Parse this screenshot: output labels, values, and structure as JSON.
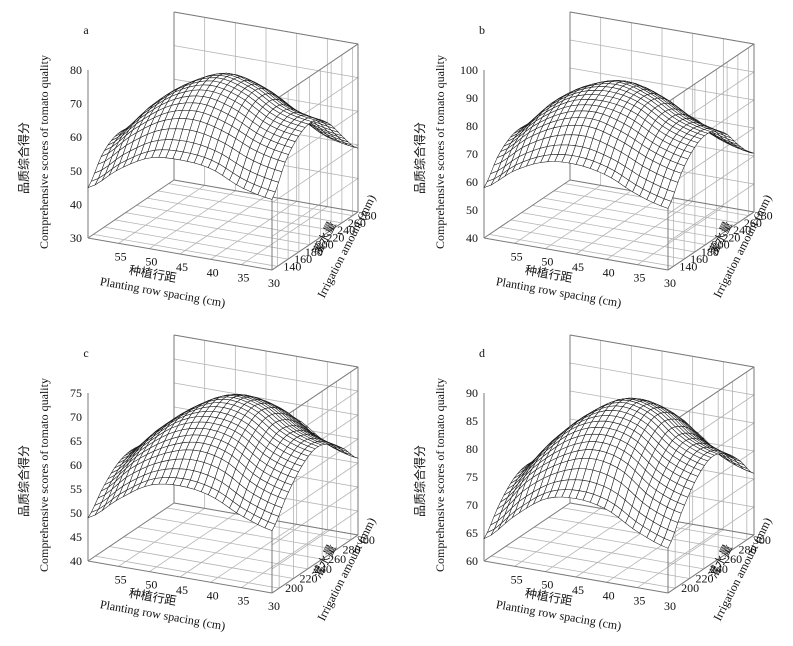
{
  "chart_data": [
    {
      "type": "surface",
      "panel_label": "a",
      "zlabel_cn": "品质综合得分",
      "zlabel": "Comprehensive scores of tomato quality",
      "xlabel_cn": "种植行距",
      "xlabel": "Planting row spacing (cm)",
      "ylabel_cn": "灌水量",
      "ylabel": "Irrigation amount (mm)",
      "x_ticks": [
        "55",
        "50",
        "45",
        "40",
        "35",
        "30"
      ],
      "y_ticks": [
        "140",
        "160",
        "180",
        "200",
        "220",
        "240",
        "260",
        "280"
      ],
      "z_ticks": [
        "30",
        "40",
        "50",
        "60",
        "70",
        "80"
      ],
      "xlim": [
        30,
        60
      ],
      "ylim": [
        130,
        290
      ],
      "zlim": [
        30,
        80
      ],
      "surface": {
        "x": [
          60,
          55,
          50,
          45,
          40,
          35,
          30
        ],
        "y": [
          130,
          160,
          190,
          220,
          250,
          280,
          290
        ],
        "z": [
          [
            45,
            52,
            57,
            58,
            57,
            53,
            51
          ],
          [
            52,
            60,
            66,
            68,
            66,
            62,
            60
          ],
          [
            55,
            64,
            71,
            74,
            72,
            67,
            65
          ],
          [
            54,
            64,
            71,
            75,
            73,
            68,
            66
          ],
          [
            50,
            60,
            67,
            71,
            69,
            64,
            62
          ],
          [
            43,
            53,
            60,
            63,
            62,
            57,
            55
          ],
          [
            38,
            47,
            54,
            57,
            56,
            51,
            49
          ]
        ]
      }
    },
    {
      "type": "surface",
      "panel_label": "b",
      "zlabel_cn": "品质综合得分",
      "zlabel": "Comprehensive scores of tomato quality",
      "xlabel_cn": "种植行距",
      "xlabel": "Planting row spacing (cm)",
      "ylabel_cn": "灌水量",
      "ylabel": "Irrigation amount (mm)",
      "x_ticks": [
        "55",
        "50",
        "45",
        "40",
        "35",
        "30"
      ],
      "y_ticks": [
        "140",
        "160",
        "180",
        "200",
        "220",
        "240",
        "260",
        "280"
      ],
      "z_ticks": [
        "40",
        "50",
        "60",
        "70",
        "80",
        "90",
        "100"
      ],
      "xlim": [
        30,
        60
      ],
      "ylim": [
        130,
        290
      ],
      "zlim": [
        40,
        100
      ],
      "surface": {
        "x": [
          60,
          55,
          50,
          45,
          40,
          35,
          30
        ],
        "y": [
          130,
          160,
          190,
          220,
          250,
          280,
          290
        ],
        "z": [
          [
            58,
            66,
            71,
            72,
            70,
            65,
            62
          ],
          [
            66,
            75,
            81,
            83,
            80,
            75,
            72
          ],
          [
            70,
            80,
            87,
            89,
            87,
            81,
            78
          ],
          [
            70,
            81,
            88,
            91,
            88,
            82,
            79
          ],
          [
            66,
            77,
            84,
            87,
            84,
            78,
            75
          ],
          [
            59,
            69,
            76,
            79,
            76,
            70,
            67
          ],
          [
            54,
            63,
            70,
            72,
            70,
            64,
            61
          ]
        ]
      }
    },
    {
      "type": "surface",
      "panel_label": "c",
      "zlabel_cn": "品质综合得分",
      "zlabel": "Comprehensive scores of tomato quality",
      "xlabel_cn": "种植行距",
      "xlabel": "Planting row spacing (cm)",
      "ylabel_cn": "灌水量",
      "ylabel": "Irrigation amount (mm)",
      "x_ticks": [
        "55",
        "50",
        "45",
        "40",
        "35",
        "30"
      ],
      "y_ticks": [
        "200",
        "220",
        "240",
        "260",
        "280",
        "300"
      ],
      "z_ticks": [
        "40",
        "45",
        "50",
        "55",
        "60",
        "65",
        "70",
        "75"
      ],
      "xlim": [
        30,
        60
      ],
      "ylim": [
        190,
        310
      ],
      "zlim": [
        40,
        75
      ],
      "surface": {
        "x": [
          60,
          55,
          50,
          45,
          40,
          35,
          30
        ],
        "y": [
          190,
          210,
          230,
          250,
          270,
          290,
          310
        ],
        "z": [
          [
            49,
            54,
            58,
            59,
            58,
            55,
            53
          ],
          [
            53,
            59,
            63,
            65,
            64,
            60,
            58
          ],
          [
            56,
            62,
            67,
            69,
            68,
            64,
            62
          ],
          [
            57,
            63,
            68,
            71,
            70,
            66,
            64
          ],
          [
            56,
            62,
            67,
            70,
            69,
            65,
            63
          ],
          [
            53,
            59,
            64,
            67,
            66,
            62,
            60
          ],
          [
            49,
            55,
            60,
            63,
            62,
            58,
            56
          ]
        ]
      }
    },
    {
      "type": "surface",
      "panel_label": "d",
      "zlabel_cn": "品质综合得分",
      "zlabel": "Comprehensive scores of tomato quality",
      "xlabel_cn": "种植行距",
      "xlabel": "Planting row spacing (cm)",
      "ylabel_cn": "灌水量",
      "ylabel": "Irrigation amount (mm)",
      "x_ticks": [
        "55",
        "50",
        "45",
        "40",
        "35",
        "30"
      ],
      "y_ticks": [
        "200",
        "220",
        "240",
        "260",
        "280",
        "300"
      ],
      "z_ticks": [
        "60",
        "65",
        "70",
        "75",
        "80",
        "85",
        "90"
      ],
      "xlim": [
        30,
        60
      ],
      "ylim": [
        190,
        310
      ],
      "zlim": [
        60,
        90
      ],
      "surface": {
        "x": [
          60,
          55,
          50,
          45,
          40,
          35,
          30
        ],
        "y": [
          190,
          210,
          230,
          250,
          270,
          290,
          310
        ],
        "z": [
          [
            64,
            69,
            73,
            74,
            73,
            70,
            68
          ],
          [
            68,
            74,
            78,
            80,
            79,
            75,
            73
          ],
          [
            71,
            77,
            82,
            84,
            83,
            79,
            77
          ],
          [
            72,
            78,
            83,
            86,
            85,
            81,
            79
          ],
          [
            71,
            77,
            82,
            85,
            84,
            80,
            78
          ],
          [
            68,
            74,
            79,
            82,
            81,
            77,
            75
          ],
          [
            65,
            71,
            75,
            78,
            77,
            73,
            71
          ]
        ]
      }
    }
  ]
}
